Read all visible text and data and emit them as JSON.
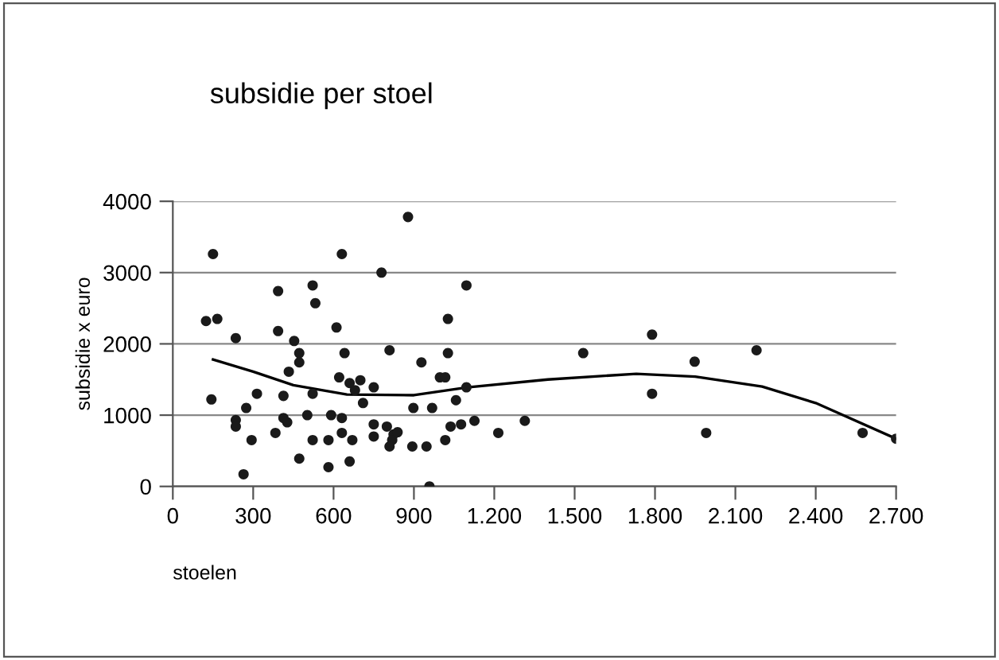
{
  "chart_data": {
    "type": "scatter",
    "title": "subsidie per stoel",
    "xlabel": "stoelen",
    "ylabel": "subsidie x euro",
    "xlim": [
      0,
      2700
    ],
    "ylim": [
      0,
      4000
    ],
    "xticks": [
      0,
      300,
      600,
      900,
      {
        "value": 1200,
        "label": "1.200"
      },
      {
        "value": 1500,
        "label": "1.500"
      },
      {
        "value": 1800,
        "label": "1.800"
      },
      {
        "value": 2100,
        "label": "2.100"
      },
      {
        "value": 2400,
        "label": "2.400"
      },
      {
        "value": 2700,
        "label": "2.700"
      }
    ],
    "yticks": [
      0,
      1000,
      2000,
      3000,
      4000
    ],
    "grid": "y",
    "legend": false,
    "series": [
      {
        "color": "#1a1a1a",
        "marker": "circle",
        "x": [
          150,
          878,
          631,
          779,
          393,
          522,
          532,
          124,
          166,
          235,
          393,
          453,
          611,
          809,
          641,
          472,
          472,
          433,
          621,
          660,
          700,
          680,
          750,
          710,
          144,
          314,
          413,
          522,
          274,
          235,
          235,
          294,
          383,
          413,
          427,
          502,
          522,
          472,
          264,
          591,
          631,
          631,
          581,
          581,
          660,
          670,
          750,
          750,
          799,
          824,
          819,
          809,
          898,
          894,
          1096,
          1027,
          1027,
          1532,
          928,
          997,
          1017,
          1096,
          1057,
          968,
          839,
          947,
          1017,
          1037,
          1076,
          1126,
          1215,
          1314,
          958,
          1789,
          1789,
          1948,
          1991,
          2179,
          2575,
          2700
        ],
        "values": [
          3260,
          3780,
          3260,
          3000,
          2740,
          2820,
          2570,
          2320,
          2350,
          2080,
          2180,
          2040,
          2230,
          1910,
          1870,
          1870,
          1740,
          1610,
          1530,
          1450,
          1490,
          1350,
          1390,
          1170,
          1220,
          1300,
          1270,
          1300,
          1100,
          930,
          840,
          650,
          750,
          960,
          900,
          1000,
          650,
          390,
          170,
          1000,
          960,
          750,
          650,
          270,
          350,
          650,
          870,
          700,
          840,
          730,
          650,
          560,
          1100,
          560,
          2820,
          2350,
          1870,
          1870,
          1740,
          1530,
          1530,
          1390,
          1210,
          1100,
          760,
          560,
          650,
          840,
          870,
          920,
          750,
          920,
          0,
          2130,
          1300,
          1750,
          750,
          1910,
          750,
          670
        ]
      },
      {
        "type": "line",
        "color": "#000000",
        "marker": "none",
        "x": [
          150,
          300,
          450,
          650,
          900,
          1100,
          1400,
          1730,
          1950,
          2200,
          2400,
          2700
        ],
        "values": [
          1780,
          1610,
          1420,
          1290,
          1280,
          1390,
          1500,
          1580,
          1540,
          1400,
          1170,
          670
        ]
      }
    ]
  }
}
